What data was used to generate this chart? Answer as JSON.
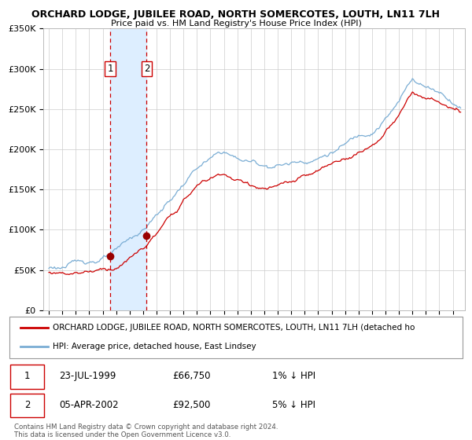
{
  "title": "ORCHARD LODGE, JUBILEE ROAD, NORTH SOMERCOTES, LOUTH, LN11 7LH",
  "subtitle": "Price paid vs. HM Land Registry's House Price Index (HPI)",
  "legend_line1": "ORCHARD LODGE, JUBILEE ROAD, NORTH SOMERCOTES, LOUTH, LN11 7LH (detached ho",
  "legend_line2": "HPI: Average price, detached house, East Lindsey",
  "transaction1_date": "23-JUL-1999",
  "transaction1_price": "£66,750",
  "transaction1_hpi": "1% ↓ HPI",
  "transaction2_date": "05-APR-2002",
  "transaction2_price": "£92,500",
  "transaction2_hpi": "5% ↓ HPI",
  "footer": "Contains HM Land Registry data © Crown copyright and database right 2024.\nThis data is licensed under the Open Government Licence v3.0.",
  "ylim": [
    0,
    350000
  ],
  "yticks": [
    0,
    50000,
    100000,
    150000,
    200000,
    250000,
    300000,
    350000
  ],
  "ytick_labels": [
    "£0",
    "£50K",
    "£100K",
    "£150K",
    "£200K",
    "£250K",
    "£300K",
    "£350K"
  ],
  "transaction1_x": 1999.56,
  "transaction1_y": 66750,
  "transaction2_x": 2002.27,
  "transaction2_y": 92500,
  "line_color_hpi": "#7aadd4",
  "line_color_price": "#cc0000",
  "dot_color": "#990000",
  "vline_color": "#cc0000",
  "shade_color": "#ddeeff",
  "background_color": "#ffffff",
  "grid_color": "#cccccc",
  "xlim_left": 1994.6,
  "xlim_right": 2025.9
}
